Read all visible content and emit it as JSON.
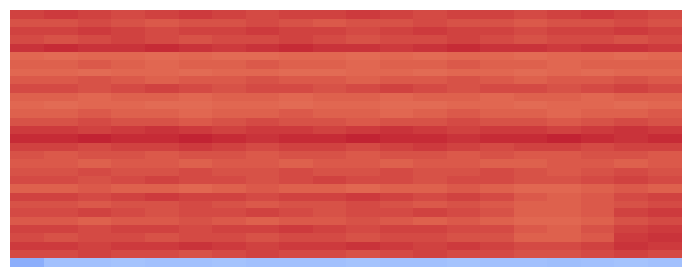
{
  "chart_data": {
    "type": "heatmap",
    "tick_labels": false,
    "zlim": [
      0,
      1
    ],
    "cells": [
      [
        0.92,
        0.93,
        0.92,
        0.91,
        0.92,
        0.93,
        0.92,
        0.91,
        0.92,
        0.92,
        0.93,
        0.92,
        0.91,
        0.92,
        0.92,
        0.91,
        0.92,
        0.93,
        0.92,
        0.91
      ],
      [
        0.9,
        0.9,
        0.91,
        0.9,
        0.89,
        0.9,
        0.9,
        0.91,
        0.9,
        0.89,
        0.9,
        0.9,
        0.91,
        0.9,
        0.9,
        0.89,
        0.9,
        0.9,
        0.91,
        0.9
      ],
      [
        0.92,
        0.92,
        0.93,
        0.92,
        0.91,
        0.92,
        0.92,
        0.93,
        0.92,
        0.92,
        0.91,
        0.92,
        0.93,
        0.92,
        0.92,
        0.91,
        0.92,
        0.92,
        0.93,
        0.92
      ],
      [
        0.91,
        0.9,
        0.91,
        0.92,
        0.91,
        0.9,
        0.91,
        0.91,
        0.92,
        0.91,
        0.9,
        0.91,
        0.91,
        0.92,
        0.91,
        0.9,
        0.91,
        0.91,
        0.9,
        0.91
      ],
      [
        0.94,
        0.95,
        0.94,
        0.94,
        0.95,
        0.94,
        0.93,
        0.94,
        0.95,
        0.94,
        0.94,
        0.93,
        0.94,
        0.95,
        0.94,
        0.94,
        0.93,
        0.94,
        0.94,
        0.93
      ],
      [
        0.87,
        0.86,
        0.87,
        0.87,
        0.86,
        0.87,
        0.86,
        0.86,
        0.87,
        0.87,
        0.86,
        0.87,
        0.86,
        0.87,
        0.87,
        0.86,
        0.87,
        0.87,
        0.86,
        0.87
      ],
      [
        0.88,
        0.88,
        0.89,
        0.88,
        0.87,
        0.88,
        0.88,
        0.89,
        0.88,
        0.88,
        0.87,
        0.88,
        0.88,
        0.89,
        0.88,
        0.88,
        0.87,
        0.88,
        0.88,
        0.88
      ],
      [
        0.87,
        0.87,
        0.86,
        0.87,
        0.87,
        0.86,
        0.87,
        0.87,
        0.86,
        0.86,
        0.87,
        0.87,
        0.86,
        0.87,
        0.87,
        0.86,
        0.87,
        0.86,
        0.87,
        0.87
      ],
      [
        0.89,
        0.89,
        0.9,
        0.89,
        0.88,
        0.89,
        0.89,
        0.9,
        0.89,
        0.89,
        0.88,
        0.89,
        0.89,
        0.9,
        0.89,
        0.88,
        0.89,
        0.89,
        0.9,
        0.89
      ],
      [
        0.91,
        0.91,
        0.9,
        0.91,
        0.92,
        0.91,
        0.9,
        0.91,
        0.91,
        0.9,
        0.91,
        0.92,
        0.91,
        0.9,
        0.91,
        0.91,
        0.9,
        0.91,
        0.92,
        0.91
      ],
      [
        0.88,
        0.88,
        0.87,
        0.88,
        0.88,
        0.87,
        0.88,
        0.88,
        0.87,
        0.88,
        0.88,
        0.87,
        0.88,
        0.88,
        0.87,
        0.88,
        0.88,
        0.87,
        0.88,
        0.88
      ],
      [
        0.87,
        0.86,
        0.87,
        0.87,
        0.86,
        0.86,
        0.87,
        0.87,
        0.86,
        0.87,
        0.87,
        0.86,
        0.86,
        0.87,
        0.87,
        0.86,
        0.87,
        0.87,
        0.86,
        0.87
      ],
      [
        0.88,
        0.88,
        0.89,
        0.88,
        0.88,
        0.87,
        0.88,
        0.88,
        0.89,
        0.88,
        0.88,
        0.87,
        0.88,
        0.89,
        0.88,
        0.88,
        0.87,
        0.88,
        0.88,
        0.89
      ],
      [
        0.9,
        0.9,
        0.91,
        0.9,
        0.9,
        0.89,
        0.9,
        0.91,
        0.9,
        0.9,
        0.89,
        0.9,
        0.9,
        0.91,
        0.9,
        0.9,
        0.89,
        0.9,
        0.91,
        0.9
      ],
      [
        0.93,
        0.93,
        0.92,
        0.93,
        0.94,
        0.93,
        0.92,
        0.93,
        0.93,
        0.92,
        0.93,
        0.94,
        0.93,
        0.92,
        0.93,
        0.93,
        0.92,
        0.93,
        0.94,
        0.93
      ],
      [
        0.95,
        0.95,
        0.96,
        0.95,
        0.95,
        0.96,
        0.95,
        0.94,
        0.95,
        0.95,
        0.96,
        0.95,
        0.95,
        0.94,
        0.95,
        0.95,
        0.96,
        0.95,
        0.94,
        0.95
      ],
      [
        0.92,
        0.92,
        0.91,
        0.92,
        0.92,
        0.93,
        0.92,
        0.91,
        0.92,
        0.92,
        0.91,
        0.92,
        0.93,
        0.92,
        0.91,
        0.92,
        0.92,
        0.91,
        0.92,
        0.92
      ],
      [
        0.9,
        0.89,
        0.9,
        0.9,
        0.89,
        0.9,
        0.9,
        0.89,
        0.9,
        0.9,
        0.89,
        0.9,
        0.9,
        0.89,
        0.9,
        0.89,
        0.89,
        0.9,
        0.9,
        0.89
      ],
      [
        0.89,
        0.89,
        0.88,
        0.89,
        0.89,
        0.88,
        0.89,
        0.89,
        0.88,
        0.89,
        0.89,
        0.88,
        0.89,
        0.89,
        0.88,
        0.88,
        0.89,
        0.89,
        0.88,
        0.89
      ],
      [
        0.9,
        0.9,
        0.91,
        0.9,
        0.9,
        0.91,
        0.9,
        0.9,
        0.91,
        0.9,
        0.9,
        0.91,
        0.9,
        0.9,
        0.91,
        0.9,
        0.89,
        0.9,
        0.91,
        0.9
      ],
      [
        0.91,
        0.91,
        0.9,
        0.91,
        0.92,
        0.91,
        0.91,
        0.9,
        0.91,
        0.92,
        0.91,
        0.91,
        0.9,
        0.91,
        0.91,
        0.9,
        0.9,
        0.91,
        0.92,
        0.91
      ],
      [
        0.88,
        0.88,
        0.89,
        0.88,
        0.88,
        0.87,
        0.88,
        0.89,
        0.88,
        0.88,
        0.87,
        0.88,
        0.88,
        0.89,
        0.88,
        0.87,
        0.87,
        0.88,
        0.89,
        0.88
      ],
      [
        0.92,
        0.92,
        0.91,
        0.92,
        0.93,
        0.92,
        0.92,
        0.91,
        0.92,
        0.92,
        0.93,
        0.92,
        0.91,
        0.92,
        0.91,
        0.89,
        0.88,
        0.89,
        0.91,
        0.92
      ],
      [
        0.9,
        0.9,
        0.89,
        0.9,
        0.9,
        0.91,
        0.9,
        0.89,
        0.9,
        0.9,
        0.91,
        0.9,
        0.89,
        0.9,
        0.89,
        0.88,
        0.88,
        0.89,
        0.9,
        0.91
      ],
      [
        0.91,
        0.91,
        0.92,
        0.91,
        0.9,
        0.91,
        0.91,
        0.92,
        0.91,
        0.9,
        0.91,
        0.91,
        0.92,
        0.91,
        0.9,
        0.88,
        0.88,
        0.89,
        0.92,
        0.93
      ],
      [
        0.89,
        0.89,
        0.88,
        0.89,
        0.89,
        0.9,
        0.89,
        0.88,
        0.89,
        0.89,
        0.9,
        0.89,
        0.88,
        0.89,
        0.88,
        0.87,
        0.87,
        0.88,
        0.9,
        0.91
      ],
      [
        0.92,
        0.92,
        0.91,
        0.92,
        0.92,
        0.91,
        0.92,
        0.92,
        0.93,
        0.92,
        0.91,
        0.92,
        0.92,
        0.91,
        0.91,
        0.89,
        0.88,
        0.9,
        0.92,
        0.93
      ],
      [
        0.91,
        0.9,
        0.91,
        0.91,
        0.9,
        0.91,
        0.91,
        0.9,
        0.91,
        0.91,
        0.9,
        0.91,
        0.91,
        0.9,
        0.9,
        0.88,
        0.88,
        0.89,
        0.93,
        0.94
      ],
      [
        0.93,
        0.93,
        0.92,
        0.93,
        0.93,
        0.94,
        0.93,
        0.92,
        0.93,
        0.93,
        0.94,
        0.93,
        0.92,
        0.93,
        0.92,
        0.91,
        0.91,
        0.92,
        0.94,
        0.93
      ],
      [
        0.91,
        0.91,
        0.92,
        0.91,
        0.91,
        0.9,
        0.91,
        0.92,
        0.91,
        0.91,
        0.9,
        0.91,
        0.92,
        0.91,
        0.91,
        0.9,
        0.9,
        0.91,
        0.92,
        0.91
      ],
      [
        0.28,
        0.35,
        0.35,
        0.36,
        0.35,
        0.35,
        0.36,
        0.35,
        0.35,
        0.35,
        0.36,
        0.35,
        0.35,
        0.36,
        0.35,
        0.35,
        0.34,
        0.35,
        0.36,
        0.35
      ]
    ]
  }
}
